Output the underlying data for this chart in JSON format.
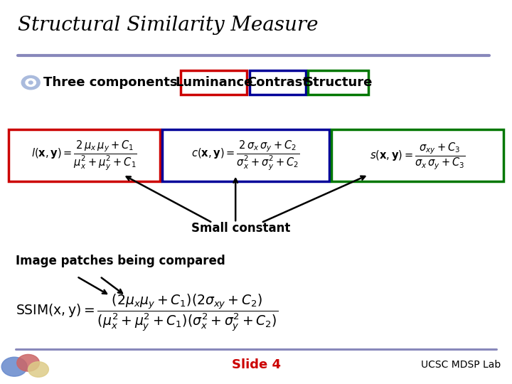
{
  "title": "Structural Similarity Measure",
  "bg_color": "#ffffff",
  "title_color": "#000000",
  "title_fontsize": 20,
  "divider_color": "#8888bb",
  "three_components_text": "Three components : ",
  "luminance_label": "Luminance",
  "contrast_label": "Contrast",
  "structure_label": "Structure",
  "luminance_box_color": "#cc0000",
  "contrast_box_color": "#000099",
  "structure_box_color": "#007700",
  "small_constant_label": "Small constant",
  "image_patches_label": "Image patches being compared",
  "slide_label": "Slide 4",
  "slide_label_color": "#cc0000",
  "ucsc_label": "UCSC MDSP Lab",
  "footer_divider_color": "#8888bb"
}
